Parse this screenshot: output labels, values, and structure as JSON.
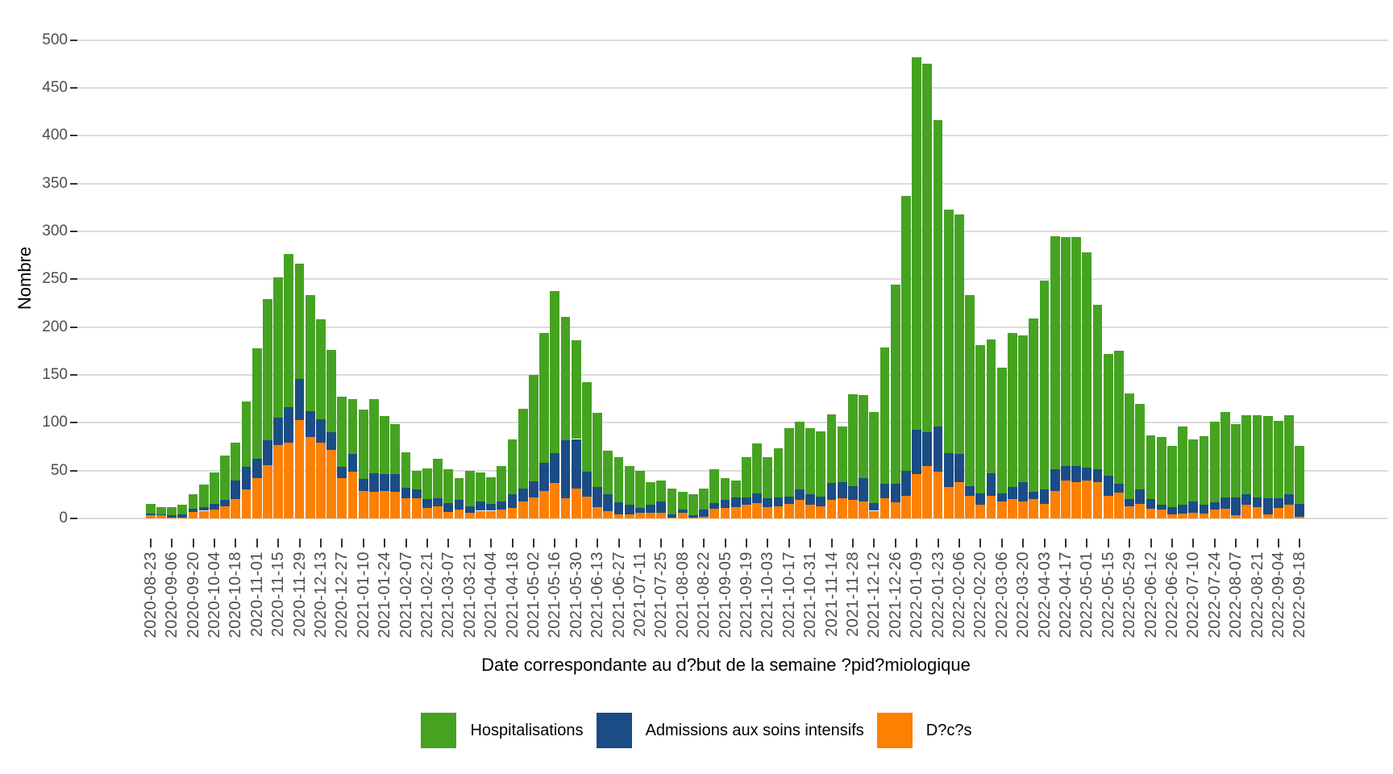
{
  "chart_data": {
    "type": "bar",
    "stacked": true,
    "title": "",
    "xlabel": "Date correspondante au d?but de la semaine ?pid?miologique",
    "ylabel": "Nombre",
    "ylim": [
      0,
      500
    ],
    "ytick_step": 50,
    "x_label_every": 2,
    "grid": true,
    "legend_position": "bottom",
    "colors": {
      "grid": "#DCDCDC",
      "tick_mark": "#333333",
      "tick_label": "#4D4D4D",
      "axis_title": "#000000",
      "background": "#FFFFFF"
    },
    "categories": [
      "2020-08-23",
      "2020-08-30",
      "2020-09-06",
      "2020-09-13",
      "2020-09-20",
      "2020-09-27",
      "2020-10-04",
      "2020-10-11",
      "2020-10-18",
      "2020-10-25",
      "2020-11-01",
      "2020-11-08",
      "2020-11-15",
      "2020-11-22",
      "2020-11-29",
      "2020-12-06",
      "2020-12-13",
      "2020-12-20",
      "2020-12-27",
      "2021-01-03",
      "2021-01-10",
      "2021-01-17",
      "2021-01-24",
      "2021-01-31",
      "2021-02-07",
      "2021-02-14",
      "2021-02-21",
      "2021-02-28",
      "2021-03-07",
      "2021-03-14",
      "2021-03-21",
      "2021-03-28",
      "2021-04-04",
      "2021-04-11",
      "2021-04-18",
      "2021-04-25",
      "2021-05-02",
      "2021-05-09",
      "2021-05-16",
      "2021-05-23",
      "2021-05-30",
      "2021-06-06",
      "2021-06-13",
      "2021-06-20",
      "2021-06-27",
      "2021-07-04",
      "2021-07-11",
      "2021-07-18",
      "2021-07-25",
      "2021-08-01",
      "2021-08-08",
      "2021-08-15",
      "2021-08-22",
      "2021-08-29",
      "2021-09-05",
      "2021-09-12",
      "2021-09-19",
      "2021-09-26",
      "2021-10-03",
      "2021-10-10",
      "2021-10-17",
      "2021-10-24",
      "2021-10-31",
      "2021-11-07",
      "2021-11-14",
      "2021-11-21",
      "2021-11-28",
      "2021-12-05",
      "2021-12-12",
      "2021-12-19",
      "2021-12-26",
      "2022-01-02",
      "2022-01-09",
      "2022-01-16",
      "2022-01-23",
      "2022-01-30",
      "2022-02-06",
      "2022-02-13",
      "2022-02-20",
      "2022-02-27",
      "2022-03-06",
      "2022-03-13",
      "2022-03-20",
      "2022-03-27",
      "2022-04-03",
      "2022-04-10",
      "2022-04-17",
      "2022-04-24",
      "2022-05-01",
      "2022-05-08",
      "2022-05-15",
      "2022-05-22",
      "2022-05-29",
      "2022-06-05",
      "2022-06-12",
      "2022-06-19",
      "2022-06-26",
      "2022-07-03",
      "2022-07-10",
      "2022-07-17",
      "2022-07-24",
      "2022-07-31",
      "2022-08-07",
      "2022-08-14",
      "2022-08-21",
      "2022-08-28",
      "2022-09-04",
      "2022-09-11",
      "2022-09-18"
    ],
    "series": [
      {
        "name": "Hospitalisations",
        "color": "#45A321",
        "values": [
          10,
          8,
          9,
          10,
          15,
          23,
          33,
          47,
          39,
          68,
          116,
          147,
          147,
          160,
          120,
          121,
          104,
          86,
          73,
          58,
          73,
          78,
          61,
          53,
          37,
          20,
          32,
          41,
          35,
          23,
          37,
          30,
          28,
          37,
          58,
          84,
          111,
          136,
          170,
          129,
          103,
          93,
          77,
          46,
          47,
          41,
          39,
          24,
          22,
          27,
          19,
          22,
          22,
          35,
          23,
          18,
          42,
          52,
          43,
          51,
          71,
          71,
          69,
          68,
          72,
          58,
          96,
          87,
          95,
          143,
          208,
          287,
          389,
          385,
          320,
          255,
          251,
          199,
          155,
          140,
          132,
          161,
          153,
          181,
          219,
          244,
          239,
          239,
          225,
          172,
          127,
          139,
          111,
          90,
          67,
          71,
          64,
          82,
          65,
          72,
          84,
          89,
          77,
          83,
          86,
          86,
          81,
          83,
          61
        ]
      },
      {
        "name": "Admissions aux soins intensifs",
        "color": "#1B4C85",
        "values": [
          2,
          1,
          2,
          3,
          3,
          4,
          6,
          6,
          20,
          24,
          20,
          26,
          28,
          37,
          43,
          27,
          25,
          18,
          12,
          18,
          12,
          19,
          17,
          18,
          11,
          9,
          9,
          8,
          9,
          10,
          7,
          10,
          7,
          9,
          14,
          13,
          17,
          29,
          31,
          61,
          52,
          26,
          21,
          17,
          13,
          10,
          5,
          8,
          12,
          3,
          3,
          2,
          7,
          6,
          8,
          10,
          8,
          10,
          9,
          9,
          8,
          11,
          11,
          10,
          18,
          17,
          15,
          24,
          8,
          15,
          19,
          26,
          47,
          35,
          47,
          35,
          29,
          10,
          12,
          23,
          8,
          13,
          20,
          8,
          15,
          22,
          15,
          17,
          13,
          13,
          21,
          9,
          7,
          15,
          10,
          5,
          8,
          9,
          12,
          9,
          8,
          12,
          19,
          11,
          10,
          17,
          10,
          11,
          13
        ]
      },
      {
        "name": "D?c?s",
        "color": "#FC8002",
        "values": [
          3,
          3,
          1,
          1,
          7,
          8,
          9,
          13,
          20,
          30,
          42,
          56,
          77,
          79,
          103,
          85,
          79,
          72,
          42,
          49,
          29,
          28,
          29,
          28,
          21,
          21,
          11,
          13,
          7,
          9,
          6,
          8,
          8,
          9,
          11,
          18,
          22,
          29,
          37,
          21,
          31,
          23,
          12,
          8,
          4,
          4,
          6,
          6,
          6,
          1,
          6,
          1,
          2,
          10,
          11,
          12,
          14,
          16,
          12,
          13,
          15,
          19,
          14,
          13,
          19,
          21,
          19,
          18,
          8,
          21,
          17,
          24,
          46,
          55,
          49,
          33,
          38,
          24,
          14,
          24,
          18,
          20,
          18,
          20,
          15,
          29,
          40,
          38,
          40,
          38,
          24,
          27,
          13,
          15,
          10,
          9,
          4,
          5,
          6,
          5,
          9,
          10,
          3,
          14,
          12,
          4,
          11,
          14,
          2
        ]
      }
    ],
    "stack_order_bottom_to_top": [
      "D?c?s",
      "Admissions aux soins intensifs",
      "Hospitalisations"
    ]
  }
}
